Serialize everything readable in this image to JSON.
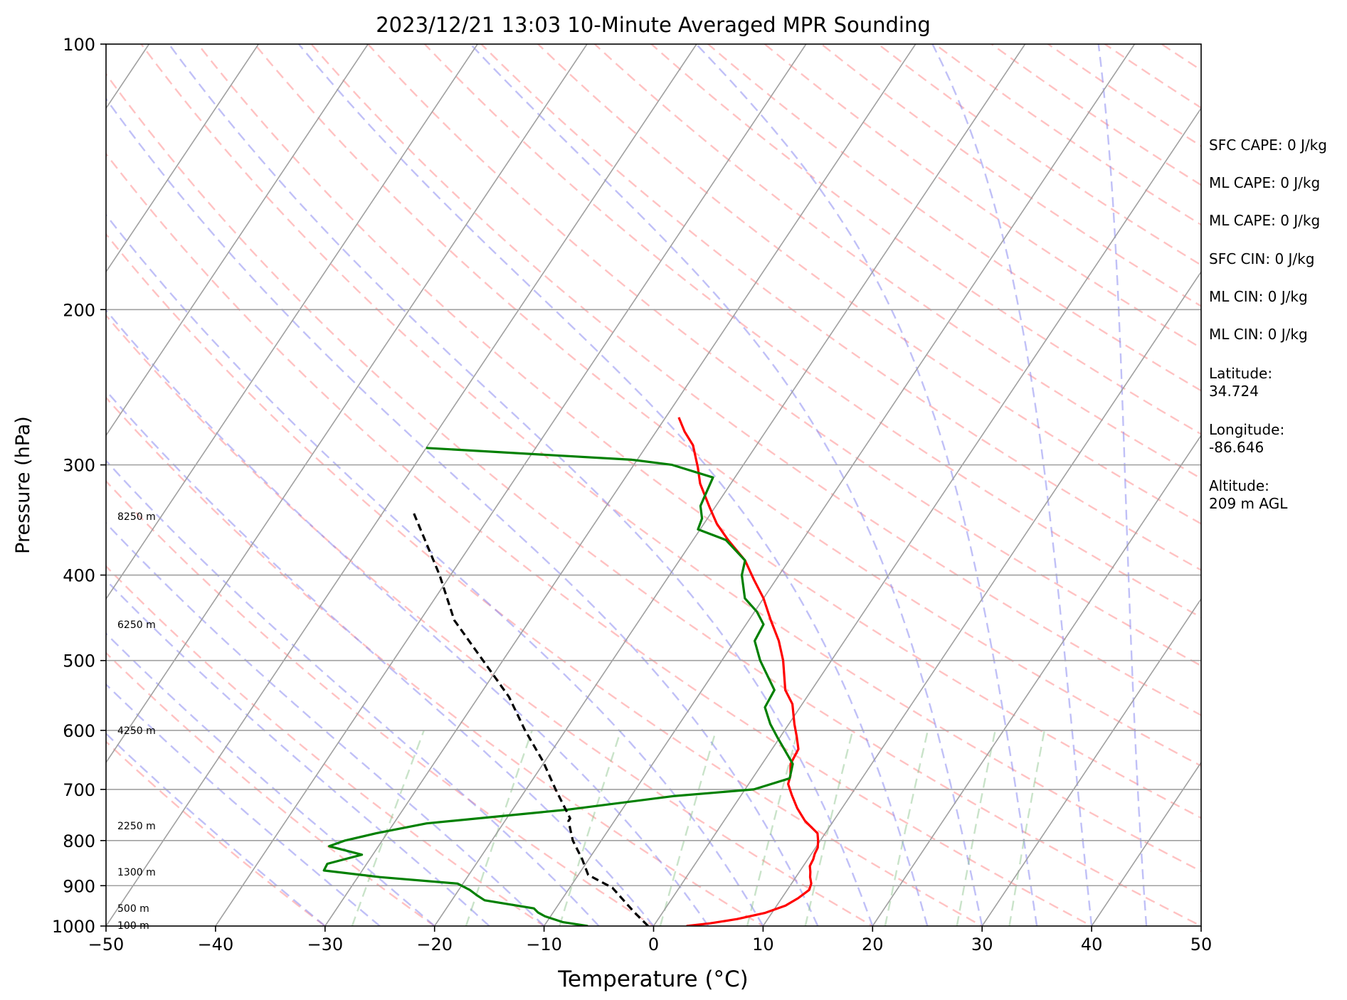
{
  "chart_data": {
    "type": "line",
    "title": "2023/12/21 13:03 10-Minute Averaged MPR Sounding",
    "xlabel": "Temperature (°C)",
    "ylabel": "Pressure (hPa)",
    "xlim": [
      -50,
      50
    ],
    "ylim": [
      1000,
      100
    ],
    "y_scale": "log",
    "skew": true,
    "grid": true,
    "x_ticks": [
      -50,
      -40,
      -30,
      -20,
      -10,
      0,
      10,
      20,
      30,
      40,
      50
    ],
    "x_tick_labels": [
      "−50",
      "−40",
      "−30",
      "−20",
      "−10",
      "0",
      "10",
      "20",
      "30",
      "40",
      "50"
    ],
    "y_ticks": [
      1000,
      900,
      800,
      700,
      600,
      500,
      400,
      300,
      200,
      100
    ],
    "y_tick_labels": [
      "1000",
      "900",
      "800",
      "700",
      "600",
      "500",
      "400",
      "300",
      "200",
      "100"
    ],
    "series": [
      {
        "color": "#ff0000",
        "x": [
          3.0,
          5.0,
          7.2,
          9.4,
          10.8,
          11.5,
          12.0,
          11.8,
          11.3,
          11.0,
          10.6,
          10.5,
          10.3,
          10.2,
          9.8,
          9.3,
          7.4,
          5.9,
          4.6,
          3.6,
          3.3,
          2.6,
          2.4,
          1.5,
          0.5,
          -0.9,
          -2.4,
          -4.4,
          -6.0,
          -8.0,
          -10.0,
          -12.0,
          -14.0,
          -16.8,
          -18.8,
          -20.5,
          -22.8,
          -24.0,
          -25.8,
          -27.4,
          -28.8
        ],
        "y": [
          1000,
          993,
          982,
          966,
          948,
          930,
          910,
          895,
          880,
          868,
          855,
          840,
          828,
          815,
          800,
          785,
          760,
          735,
          710,
          690,
          675,
          655,
          630,
          610,
          590,
          560,
          540,
          500,
          475,
          450,
          425,
          405,
          385,
          365,
          350,
          335,
          315,
          302,
          285,
          275,
          265
        ]
      },
      {
        "color": "#008000",
        "x": [
          -6.0,
          -8.5,
          -10.5,
          -11.4,
          -12.0,
          -17.0,
          -18.0,
          -19.0,
          -20.5,
          -28.0,
          -33.5,
          -33.6,
          -31.0,
          -34.5,
          -33.4,
          -31.0,
          -27.0,
          -15.0,
          -6.0,
          0.8,
          3.4,
          2.8,
          -0.3,
          -1.7,
          -3.2,
          -3.4,
          -6.5,
          -8.2,
          -8.4,
          -9.8,
          -11.7,
          -13.4,
          -14.0,
          -17.0,
          -20.2,
          -20.5,
          -21.4,
          -21.6,
          -22.0,
          -26.5,
          -30.5,
          -50.0
        ],
        "y": [
          1000,
          990,
          975,
          965,
          955,
          935,
          923,
          910,
          895,
          880,
          865,
          850,
          830,
          812,
          800,
          785,
          765,
          738,
          712,
          700,
          680,
          655,
          610,
          590,
          565,
          540,
          500,
          475,
          455,
          440,
          425,
          400,
          385,
          365,
          355,
          345,
          334,
          326,
          310,
          300,
          296,
          287
        ]
      },
      {
        "color": "#000000",
        "x": [
          -0.5,
          -2.7,
          -6.1,
          -9.1,
          -10.6,
          -12.6,
          -14.2,
          -14.2,
          -17.3,
          -20.2,
          -23.7,
          -27.2,
          -31.8,
          -36.9,
          -41.0,
          -47.4
        ],
        "y": [
          1000,
          963,
          905,
          875,
          840,
          800,
          760,
          755,
          700,
          650,
          600,
          550,
          500,
          450,
          400,
          338
        ]
      }
    ],
    "height_labels": [
      {
        "text": "100 m",
        "p": 998
      },
      {
        "text": "500 m",
        "p": 955
      },
      {
        "text": "1300 m",
        "p": 868
      },
      {
        "text": "2250 m",
        "p": 770
      },
      {
        "text": "4250 m",
        "p": 600
      },
      {
        "text": "6250 m",
        "p": 455
      },
      {
        "text": "8250 m",
        "p": 343
      }
    ],
    "annotations": [
      "SFC CAPE: 0 J/kg",
      "ML CAPE: 0 J/kg",
      "ML CAPE: 0 J/kg",
      "SFC CIN: 0 J/kg",
      "ML CIN: 0 J/kg",
      "ML CIN: 0 J/kg",
      "Latitude:",
      "34.724",
      "Longitude:",
      "-86.646",
      "Altitude:",
      "209 m AGL"
    ]
  },
  "colors": {
    "temperature": "#ff0000",
    "dewpoint": "#008000",
    "parcel": "#000000",
    "isotherm": "#a0a0a0",
    "dry_adiabat": "#ff9999",
    "moist_adiabat": "#8c8cf0",
    "mixing_ratio": "#88c088"
  }
}
